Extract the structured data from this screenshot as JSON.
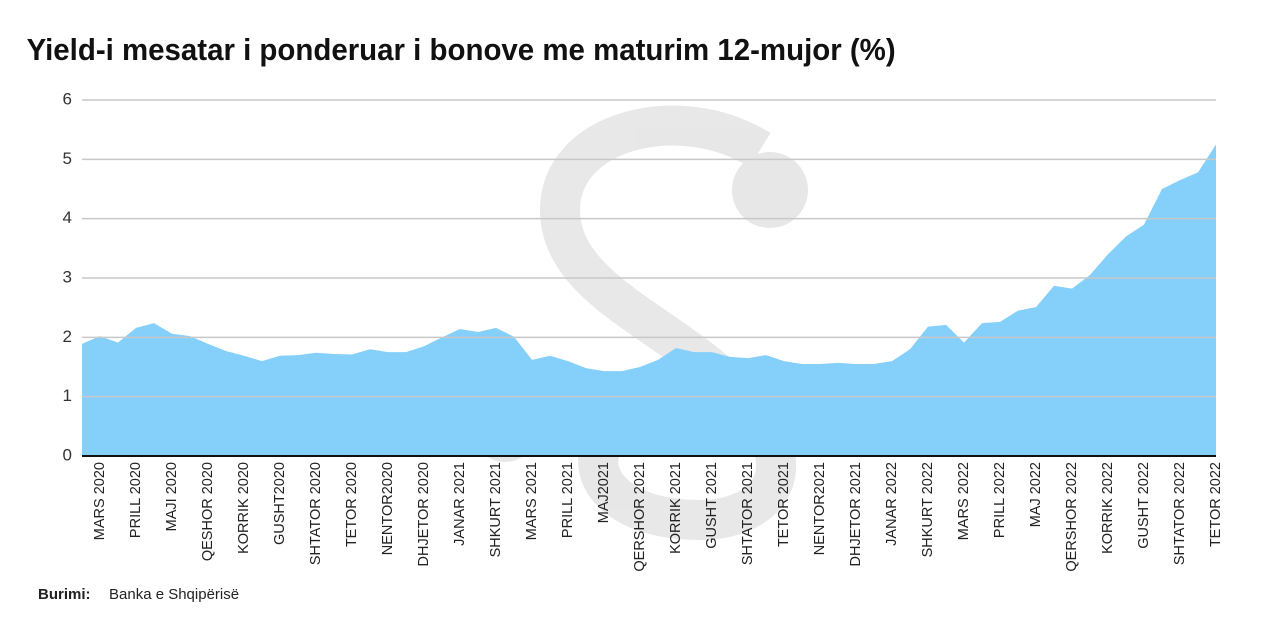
{
  "chart_data": {
    "type": "area",
    "title": "Yield-i mesatar i ponderuar i bonove me maturim 12-mujor (%)",
    "categories": [
      null,
      "MARS 2020",
      null,
      "PRILL 2020",
      null,
      "MAJI 2020",
      null,
      "QESHOR 2020",
      null,
      "KORRIK 2020",
      null,
      "GUSHT2020",
      null,
      "SHTATOR 2020",
      null,
      "TETOR 2020",
      null,
      "NENTOR2020",
      null,
      "DHJETOR 2020",
      null,
      "JANAR 2021",
      null,
      "SHKURT 2021",
      null,
      "MARS 2021",
      null,
      "PRILL 2021",
      null,
      "MAJ2021",
      null,
      "QERSHOR 2021",
      null,
      "KORRIK 2021",
      null,
      "GUSHT 2021",
      null,
      "SHTATOR 2021",
      null,
      "TETOR 2021",
      null,
      "NENTOR2021",
      null,
      "DHJETOR 2021",
      null,
      "JANAR 2022",
      null,
      "SHKURT 2022",
      null,
      "MARS 2022",
      null,
      "PRILL 2022",
      null,
      "MAJ 2022",
      null,
      "QERSHOR 2022",
      null,
      "KORRIK 2022",
      null,
      "GUSHT 2022",
      null,
      "SHTATOR 2022",
      null,
      "TETOR 2022"
    ],
    "values": [
      1.89,
      2.02,
      1.91,
      2.16,
      2.24,
      2.06,
      2.02,
      1.89,
      1.77,
      1.69,
      1.6,
      1.69,
      1.7,
      1.74,
      1.72,
      1.71,
      1.8,
      1.75,
      1.75,
      1.85,
      2.0,
      2.14,
      2.09,
      2.16,
      2.01,
      1.62,
      1.69,
      1.6,
      1.48,
      1.43,
      1.43,
      1.5,
      1.62,
      1.82,
      1.75,
      1.75,
      1.67,
      1.65,
      1.7,
      1.6,
      1.55,
      1.55,
      1.57,
      1.55,
      1.55,
      1.6,
      1.8,
      2.18,
      2.21,
      1.91,
      2.24,
      2.26,
      2.45,
      2.51,
      2.87,
      2.82,
      3.05,
      3.4,
      3.7,
      3.9,
      4.5,
      4.65,
      4.78,
      5.25
    ],
    "color": "#85cffb",
    "ylim": [
      0,
      6
    ],
    "yticks": [
      0,
      1,
      2,
      3,
      4,
      5,
      6
    ],
    "grid": true,
    "source_label": "Burimi:",
    "source_text": "Banka e Shqipërisë"
  }
}
